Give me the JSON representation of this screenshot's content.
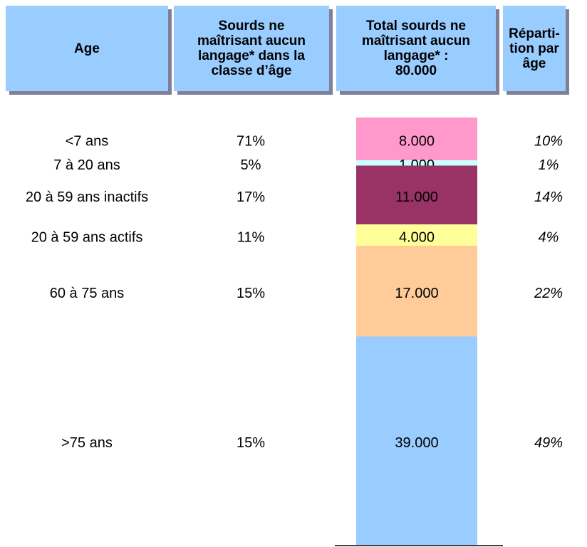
{
  "chart_data": {
    "type": "stacked_column",
    "headers": [
      [
        "Age"
      ],
      [
        "Sourds ne",
        "maîtrisant aucun",
        "langage* dans la",
        "classe d’âge"
      ],
      [
        "Total sourds ne",
        "maîtrisant aucun",
        "langage* :",
        "80.000"
      ],
      [
        "Réparti-",
        "tion par",
        "âge"
      ]
    ],
    "categories": [
      "<7 ans",
      "7 à 20 ans",
      "20 à 59 ans inactifs",
      "20 à 59 ans actifs",
      "60 à 75 ans",
      ">75 ans"
    ],
    "share_in_class": {
      "values": [
        71,
        5,
        17,
        11,
        15,
        15
      ],
      "value_labels": [
        "71%",
        "5%",
        "17%",
        "11%",
        "15%",
        "15%"
      ]
    },
    "values": [
      8000,
      1000,
      11000,
      4000,
      17000,
      39000
    ],
    "value_labels": [
      "8.000",
      "1.000",
      "11.000",
      "4.000",
      "17.000",
      "39.000"
    ],
    "colors": [
      "#ff99cc",
      "#ccffff",
      "#993366",
      "#ffff99",
      "#ffcc99",
      "#99ccff"
    ],
    "distribution": {
      "values": [
        10,
        1,
        14,
        4,
        22,
        49
      ],
      "value_labels": [
        "10%",
        "1%",
        "14%",
        "4%",
        "22%",
        "49%"
      ]
    }
  }
}
